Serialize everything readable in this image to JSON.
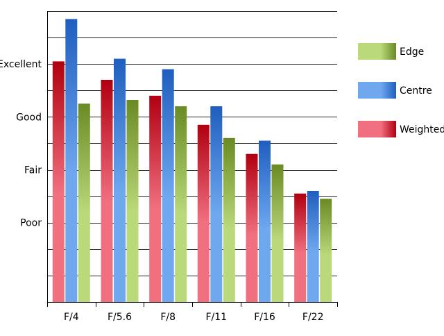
{
  "chart_data": {
    "type": "bar",
    "categories": [
      "F/4",
      "F/5.6",
      "F/8",
      "F/11",
      "F/16",
      "F/22"
    ],
    "series": [
      {
        "name": "Weighted",
        "values": [
          4.55,
          4.2,
          3.9,
          3.35,
          2.8,
          2.05
        ]
      },
      {
        "name": "Centre",
        "values": [
          5.35,
          4.6,
          4.4,
          3.7,
          3.05,
          2.1
        ]
      },
      {
        "name": "Edge",
        "values": [
          3.75,
          3.82,
          3.7,
          3.1,
          2.6,
          1.95
        ]
      }
    ],
    "legend_order": [
      "Edge",
      "Centre",
      "Weighted"
    ],
    "y_ticks": [
      {
        "value": 1.5,
        "label": "Poor"
      },
      {
        "value": 2.5,
        "label": "Fair"
      },
      {
        "value": 3.5,
        "label": "Good"
      },
      {
        "value": 4.5,
        "label": "Excellent"
      }
    ],
    "ylim": [
      0,
      5.5
    ],
    "gridlines": true,
    "legend_position": "right",
    "title": "",
    "xlabel": "",
    "ylabel": "",
    "colors": {
      "Weighted": {
        "light": "#f07080",
        "dark": "#b00010"
      },
      "Centre": {
        "light": "#6fa8ef",
        "dark": "#1f5ebf"
      },
      "Edge": {
        "light": "#b9d97a",
        "dark": "#6a8a24"
      }
    }
  }
}
